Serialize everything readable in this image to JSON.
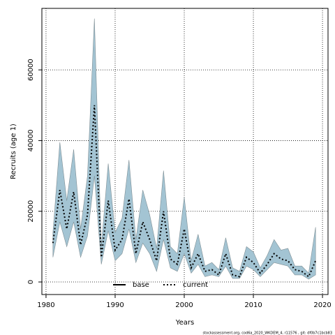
{
  "chart_data": {
    "type": "line",
    "xlabel": "Years",
    "ylabel": "Recruits (age 1)",
    "footer": "stockassessment.org, cod6a_2020_WKDEM_4, r11576 , git: df0b7c1bcb83",
    "x": [
      1981,
      1982,
      1983,
      1984,
      1985,
      1986,
      1987,
      1988,
      1989,
      1990,
      1991,
      1992,
      1993,
      1994,
      1995,
      1996,
      1997,
      1998,
      1999,
      2000,
      2001,
      2002,
      2003,
      2004,
      2005,
      2006,
      2007,
      2008,
      2009,
      2010,
      2011,
      2012,
      2013,
      2014,
      2015,
      2016,
      2017,
      2018,
      2019
    ],
    "series": [
      {
        "name": "base",
        "color": "#000000",
        "dash": false
      },
      {
        "name": "current",
        "color": "#000000",
        "dash": true,
        "band_color": "#a3c4d3",
        "values": [
          11000,
          26000,
          15000,
          25500,
          10500,
          19000,
          50000,
          7000,
          23000,
          9000,
          12000,
          23500,
          8000,
          17000,
          12000,
          6000,
          20000,
          6500,
          5000,
          15000,
          4000,
          8000,
          3000,
          3500,
          2000,
          8000,
          2000,
          1500,
          7000,
          5500,
          2500,
          5000,
          8000,
          6500,
          6000,
          3500,
          3000,
          1500,
          6000
        ],
        "lower": [
          7000,
          17000,
          10000,
          17000,
          7000,
          13000,
          30000,
          5000,
          14500,
          6000,
          8000,
          15000,
          5500,
          11000,
          8000,
          3000,
          12000,
          4000,
          3000,
          8000,
          2500,
          5000,
          1500,
          2000,
          1500,
          4500,
          1000,
          1000,
          4500,
          3500,
          1500,
          3500,
          5500,
          5000,
          4500,
          2000,
          2000,
          800,
          2000
        ],
        "upper": [
          14000,
          39500,
          23000,
          37500,
          15000,
          30000,
          74500,
          10000,
          33500,
          14000,
          18000,
          34500,
          12000,
          26000,
          19000,
          9500,
          31500,
          10000,
          8000,
          24000,
          6000,
          13500,
          4500,
          5500,
          3500,
          12500,
          4000,
          3000,
          10000,
          8500,
          4000,
          7500,
          12000,
          9000,
          9500,
          4500,
          4500,
          2500,
          15500
        ]
      }
    ],
    "xlim": [
      1979.4,
      2020.8
    ],
    "ylim": [
      -3550,
      77400
    ],
    "xticks": [
      1980,
      1990,
      2000,
      2010,
      2020
    ],
    "yticks": [
      0,
      20000,
      40000,
      60000
    ],
    "grid": true,
    "legend": "bottom"
  }
}
